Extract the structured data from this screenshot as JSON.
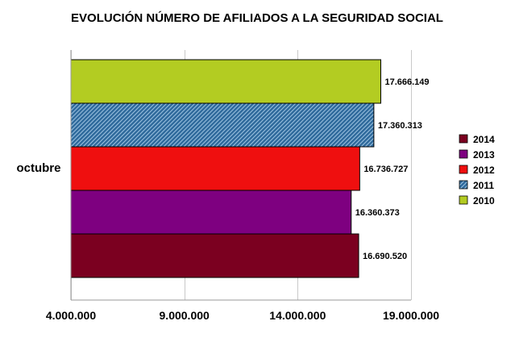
{
  "chart_data": {
    "type": "bar",
    "orientation": "horizontal",
    "title": "EVOLUCIÓN NÚMERO DE AFILIADOS A LA SEGURIDAD SOCIAL",
    "categories": [
      "octubre"
    ],
    "xlim": [
      4000000,
      19000000
    ],
    "x_ticks": [
      4000000,
      9000000,
      14000000,
      19000000
    ],
    "x_tick_labels": [
      "4.000.000",
      "9.000.000",
      "14.000.000",
      "19.000.000"
    ],
    "grid": "vertical",
    "legend_position": "right",
    "series": [
      {
        "name": "2014",
        "values": [
          16690520
        ],
        "label": "16.690.520",
        "color": "#7b0020",
        "pattern": "none"
      },
      {
        "name": "2013",
        "values": [
          16360373
        ],
        "label": "16.360.373",
        "color": "#7e0080",
        "pattern": "none"
      },
      {
        "name": "2012",
        "values": [
          16736727
        ],
        "label": "16.736.727",
        "color": "#ef0f0f",
        "pattern": "none"
      },
      {
        "name": "2011",
        "values": [
          17360313
        ],
        "label": "17.360.313",
        "color": "#2f6a9c",
        "pattern": "diagonal-hatch"
      },
      {
        "name": "2010",
        "values": [
          17666149
        ],
        "label": "17.666.149",
        "color": "#b3cc22",
        "pattern": "none"
      }
    ]
  }
}
